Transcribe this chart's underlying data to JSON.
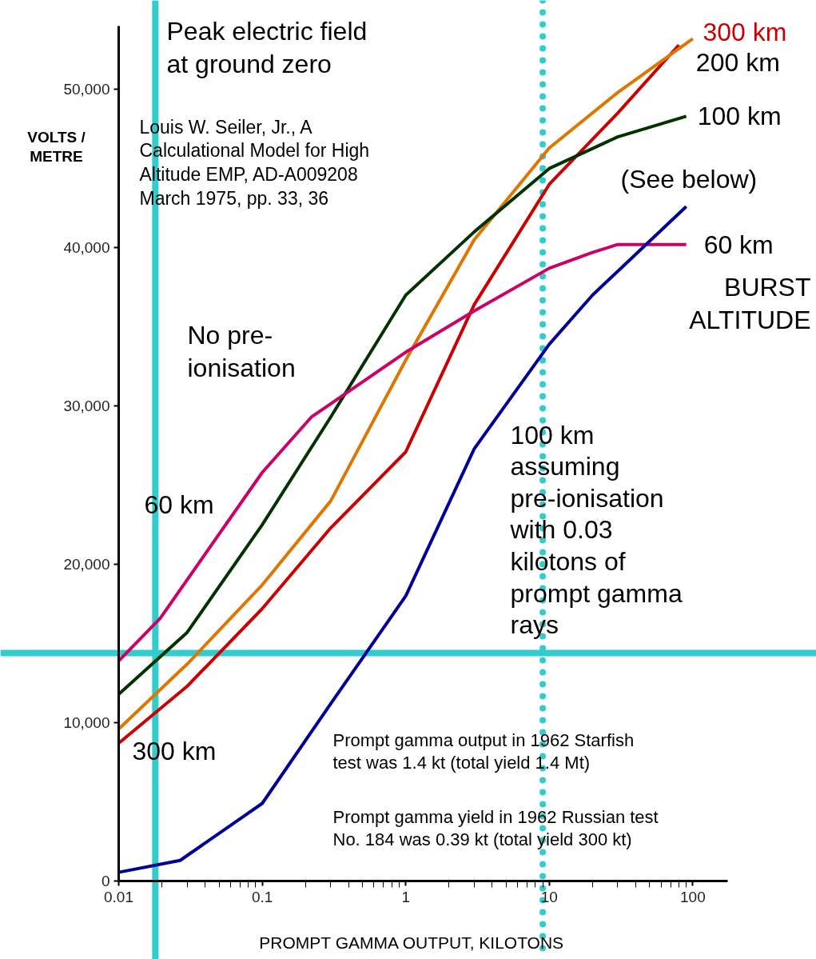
{
  "chart_data": {
    "type": "line",
    "title": "Peak electric field\nat ground zero",
    "xlabel": "PROMPT GAMMA OUTPUT, KILOTONS",
    "ylabel": "VOLTS /\nMETRE",
    "log": "x",
    "grid": false,
    "marker": "none",
    "line_style": "solid",
    "xlim": [
      0.01,
      175
    ],
    "xticks": [
      0.01,
      0.1,
      1,
      10,
      100
    ],
    "ylim": [
      0,
      54000
    ],
    "yticks": [
      0,
      {
        "value": 10000,
        "label": "10,000"
      },
      {
        "value": 20000,
        "label": "20,000"
      },
      {
        "value": 30000,
        "label": "30,000"
      },
      {
        "value": 40000,
        "label": "40,000"
      },
      {
        "value": 50000,
        "label": "50,000"
      }
    ],
    "series": [
      {
        "name": "300 km",
        "color": "#cc0000",
        "x": [
          0.01,
          0.03,
          0.1,
          0.3,
          1,
          3,
          10,
          30,
          80
        ],
        "values": [
          8700,
          12300,
          17200,
          22300,
          27100,
          36400,
          44000,
          48500,
          52800
        ]
      },
      {
        "name": "200 km",
        "color": "#dd7700",
        "x": [
          0.01,
          0.03,
          0.1,
          0.3,
          1,
          3,
          10,
          30,
          100
        ],
        "values": [
          9600,
          13700,
          18700,
          24000,
          32900,
          40500,
          46300,
          49800,
          53200
        ]
      },
      {
        "name": "100 km",
        "color": "#003300",
        "x": [
          0.01,
          0.03,
          0.1,
          0.3,
          1,
          3,
          10,
          30,
          90
        ],
        "values": [
          11800,
          15700,
          22500,
          29300,
          37000,
          41000,
          45000,
          47000,
          48300
        ]
      },
      {
        "name": "60 km",
        "color": "#cc0066",
        "x": [
          0.01,
          0.0195,
          0.1,
          0.22,
          1,
          3,
          10,
          20,
          30,
          90
        ],
        "values": [
          13900,
          16600,
          25800,
          29300,
          33400,
          36000,
          38700,
          39700,
          40200,
          40200
        ]
      },
      {
        "name": "100 km\nassuming\npre-ionisation\nwith 0.03\nkilotons of\nprompt gamma\nrays",
        "color": "#000099",
        "x": [
          0.01,
          0.0268,
          0.1,
          0.3,
          1,
          3,
          10,
          20,
          90
        ],
        "values": [
          550,
          1300,
          4900,
          11200,
          18000,
          27300,
          33900,
          37000,
          42600
        ]
      }
    ],
    "ref_lines": [
      {
        "axis": "x",
        "value": 9,
        "color": "#33cccc",
        "line_style": "dotted"
      },
      {
        "axis": "x",
        "value": 0.018,
        "color": "#33cccc",
        "line_style": "solid"
      },
      {
        "axis": "y",
        "value": 14400,
        "color": "#33cccc",
        "line_style": "solid"
      }
    ],
    "annotations": [
      "Louis W. Seiler, Jr., A\nCalculational Model for High\nAltitude EMP, AD-A009208\nMarch 1975, pp. 33, 36",
      "No pre-\nionisation",
      "(See below)",
      "BURST\nALTITUDE",
      "Prompt gamma output in 1962 Starfish\ntest was 1.4 kt (total yield 1.4 Mt)",
      "Prompt gamma yield in 1962 Russian test\nNo. 184 was 0.39 kt (total yield 300 kt)",
      "60 km",
      "300 km"
    ]
  }
}
